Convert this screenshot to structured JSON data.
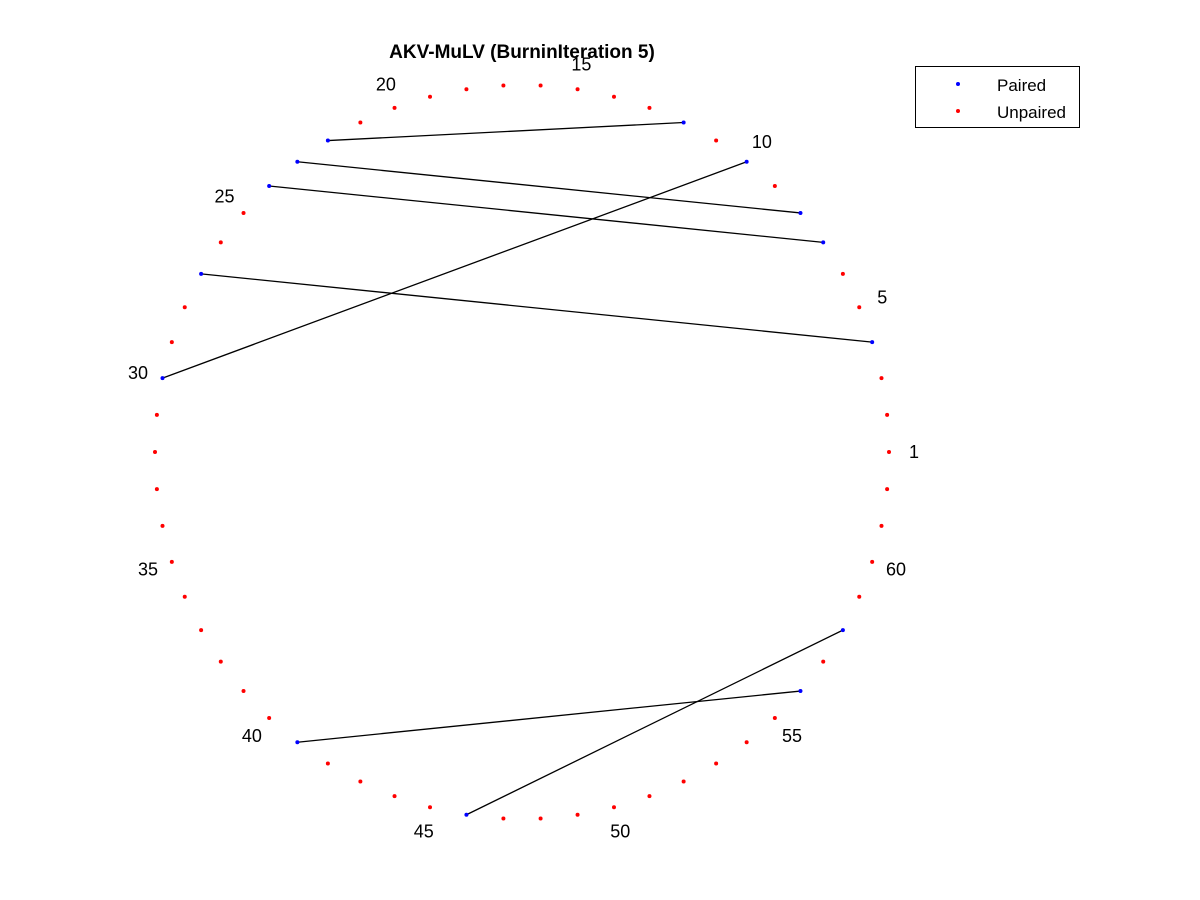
{
  "title": "AKV-MuLV (BurninIteration 5)",
  "legend": {
    "placement": "top-right",
    "items": [
      {
        "label": "Paired",
        "color": "#0000ff"
      },
      {
        "label": "Unpaired",
        "color": "#ff0000"
      }
    ]
  },
  "arc_diagram": {
    "sequence_length": 62,
    "layout": "circle",
    "paired_color": "#0000ff",
    "unpaired_color": "#ff0000",
    "line_color": "#000000",
    "pairs": [
      [
        4,
        27
      ],
      [
        7,
        24
      ],
      [
        8,
        23
      ],
      [
        10,
        30
      ],
      [
        12,
        22
      ],
      [
        41,
        56
      ],
      [
        46,
        58
      ]
    ],
    "position_labels": [
      1,
      5,
      10,
      15,
      20,
      25,
      30,
      35,
      40,
      45,
      50,
      55,
      60
    ]
  }
}
